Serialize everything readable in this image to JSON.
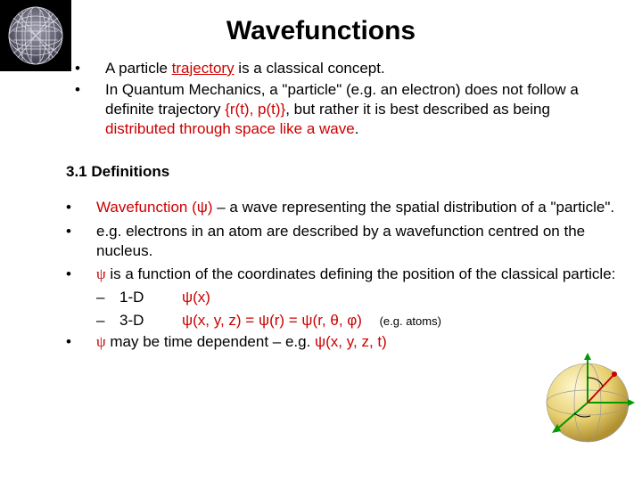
{
  "title": "Wavefunctions",
  "colors": {
    "accent": "#cc0000",
    "text": "#000000",
    "background": "#ffffff"
  },
  "intro": [
    {
      "bullet": "•",
      "parts": [
        {
          "t": "A particle ",
          "red": false
        },
        {
          "t": "trajectory",
          "red": true,
          "underline": true
        },
        {
          "t": " is a classical concept.",
          "red": false
        }
      ]
    },
    {
      "bullet": "•",
      "parts": [
        {
          "t": "In Quantum Mechanics, a \"particle\" (e.g. an electron) does not follow a definite trajectory ",
          "red": false
        },
        {
          "t": "{r(t), p(t)}",
          "red": true
        },
        {
          "t": ", but rather it is best described as being ",
          "red": false
        },
        {
          "t": "distributed through space like a wave",
          "red": true
        },
        {
          "t": ".",
          "red": false
        }
      ]
    }
  ],
  "section_number": "3.1",
  "section_title": "Definitions",
  "defs": [
    {
      "bullet": "•",
      "parts": [
        {
          "t": "Wavefunction (ψ)",
          "red": true
        },
        {
          "t": " – a wave representing the spatial distribution of a \"particle\".",
          "red": false
        }
      ]
    },
    {
      "bullet": "•",
      "parts": [
        {
          "t": "e.g. electrons in an atom are described by a wavefunction centred on the nucleus.",
          "red": false
        }
      ]
    },
    {
      "bullet": "•",
      "parts": [
        {
          "t": "ψ",
          "red": true,
          "psi": true
        },
        {
          "t": " is a function of the coordinates defining the position of the classical particle:",
          "red": false
        }
      ],
      "subs": [
        {
          "dash": "–",
          "label": "1-D",
          "expr": "ψ(x)",
          "note": ""
        },
        {
          "dash": "–",
          "label": "3-D",
          "expr": "ψ(x, y, z) = ψ(r) = ψ(r, θ, φ)",
          "note": "(e.g. atoms)"
        }
      ]
    },
    {
      "bullet": "•",
      "parts": [
        {
          "t": "ψ",
          "red": true,
          "psi": true
        },
        {
          "t": " may be time dependent – e.g. ",
          "red": false
        },
        {
          "t": "ψ(x, y, z, t)",
          "red": true
        }
      ]
    }
  ],
  "icons": {
    "logo": "nanotube-icon",
    "sphere": "coordinate-sphere-icon"
  }
}
